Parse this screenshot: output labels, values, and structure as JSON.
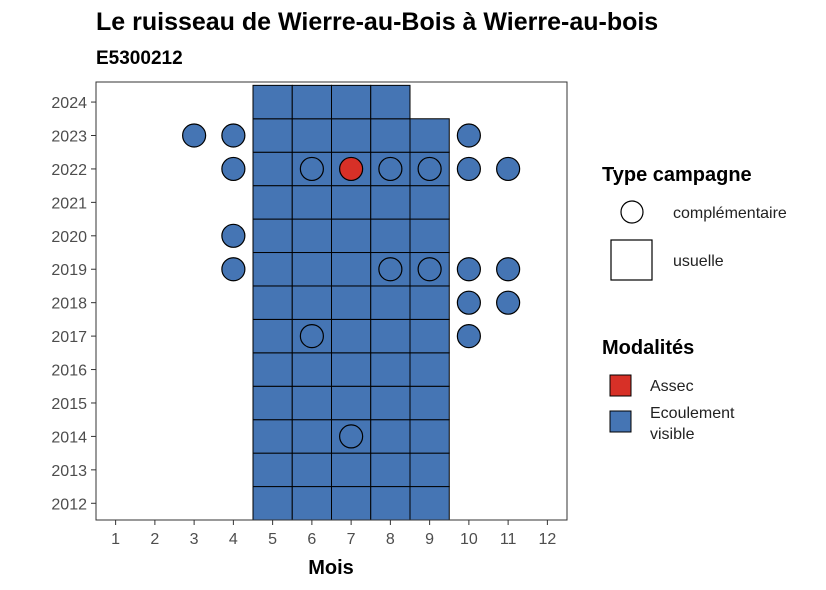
{
  "chart_data": {
    "type": "scatter",
    "title": "Le ruisseau de Wierre-au-Bois à Wierre-au-bois",
    "subtitle": "E5300212",
    "xlabel": "Mois",
    "ylabel": "",
    "xlim": [
      0.5,
      12.5
    ],
    "ylim": [
      2011.5,
      2024.6
    ],
    "x_ticks": [
      "1",
      "2",
      "3",
      "4",
      "5",
      "6",
      "7",
      "8",
      "9",
      "10",
      "11",
      "12"
    ],
    "y_ticks": [
      "2012",
      "2013",
      "2014",
      "2015",
      "2016",
      "2017",
      "2018",
      "2019",
      "2020",
      "2021",
      "2022",
      "2023",
      "2024"
    ],
    "grid": false,
    "legend_position": "right",
    "colors": {
      "Assec": "#d73027",
      "Ecoulement visible": "#4575b4"
    },
    "legend": {
      "type_title": "Type campagne",
      "type_entries": [
        {
          "label": "complémentaire",
          "shape": "circle"
        },
        {
          "label": "usuelle",
          "shape": "square"
        }
      ],
      "modalite_title": "Modalités",
      "modalite_entries": [
        {
          "label": "Assec",
          "label_lines": [
            "Assec"
          ],
          "color": "#d73027"
        },
        {
          "label": "Ecoulement visible",
          "label_lines": [
            "Ecoulement",
            "visible"
          ],
          "color": "#4575b4"
        }
      ]
    },
    "usuelle": [
      {
        "year": 2012,
        "months": [
          5,
          6,
          7,
          8,
          9
        ]
      },
      {
        "year": 2013,
        "months": [
          5,
          6,
          7,
          8,
          9
        ]
      },
      {
        "year": 2014,
        "months": [
          5,
          6,
          7,
          8,
          9
        ]
      },
      {
        "year": 2015,
        "months": [
          5,
          6,
          7,
          8,
          9
        ]
      },
      {
        "year": 2016,
        "months": [
          5,
          6,
          7,
          8,
          9
        ]
      },
      {
        "year": 2017,
        "months": [
          5,
          6,
          7,
          8,
          9
        ]
      },
      {
        "year": 2018,
        "months": [
          5,
          6,
          7,
          8,
          9
        ]
      },
      {
        "year": 2019,
        "months": [
          5,
          6,
          7,
          8,
          9
        ]
      },
      {
        "year": 2020,
        "months": [
          5,
          6,
          7,
          8,
          9
        ]
      },
      {
        "year": 2021,
        "months": [
          5,
          6,
          7,
          8,
          9
        ]
      },
      {
        "year": 2022,
        "months": [
          5,
          6,
          7,
          8,
          9
        ]
      },
      {
        "year": 2023,
        "months": [
          5,
          6,
          7,
          8,
          9
        ]
      },
      {
        "year": 2024,
        "months": [
          5,
          6,
          7,
          8
        ]
      }
    ],
    "complementaire": [
      {
        "year": 2023,
        "month": 3,
        "modalite": "Ecoulement visible"
      },
      {
        "year": 2023,
        "month": 4,
        "modalite": "Ecoulement visible"
      },
      {
        "year": 2023,
        "month": 10,
        "modalite": "Ecoulement visible"
      },
      {
        "year": 2022,
        "month": 4,
        "modalite": "Ecoulement visible"
      },
      {
        "year": 2022,
        "month": 6,
        "modalite": "Ecoulement visible"
      },
      {
        "year": 2022,
        "month": 7,
        "modalite": "Assec"
      },
      {
        "year": 2022,
        "month": 8,
        "modalite": "Ecoulement visible"
      },
      {
        "year": 2022,
        "month": 9,
        "modalite": "Ecoulement visible"
      },
      {
        "year": 2022,
        "month": 10,
        "modalite": "Ecoulement visible"
      },
      {
        "year": 2022,
        "month": 11,
        "modalite": "Ecoulement visible"
      },
      {
        "year": 2020,
        "month": 4,
        "modalite": "Ecoulement visible"
      },
      {
        "year": 2019,
        "month": 4,
        "modalite": "Ecoulement visible"
      },
      {
        "year": 2019,
        "month": 8,
        "modalite": "Ecoulement visible"
      },
      {
        "year": 2019,
        "month": 9,
        "modalite": "Ecoulement visible"
      },
      {
        "year": 2019,
        "month": 10,
        "modalite": "Ecoulement visible"
      },
      {
        "year": 2019,
        "month": 11,
        "modalite": "Ecoulement visible"
      },
      {
        "year": 2018,
        "month": 10,
        "modalite": "Ecoulement visible"
      },
      {
        "year": 2018,
        "month": 11,
        "modalite": "Ecoulement visible"
      },
      {
        "year": 2017,
        "month": 6,
        "modalite": "Ecoulement visible"
      },
      {
        "year": 2017,
        "month": 10,
        "modalite": "Ecoulement visible"
      },
      {
        "year": 2014,
        "month": 7,
        "modalite": "Ecoulement visible"
      }
    ]
  }
}
